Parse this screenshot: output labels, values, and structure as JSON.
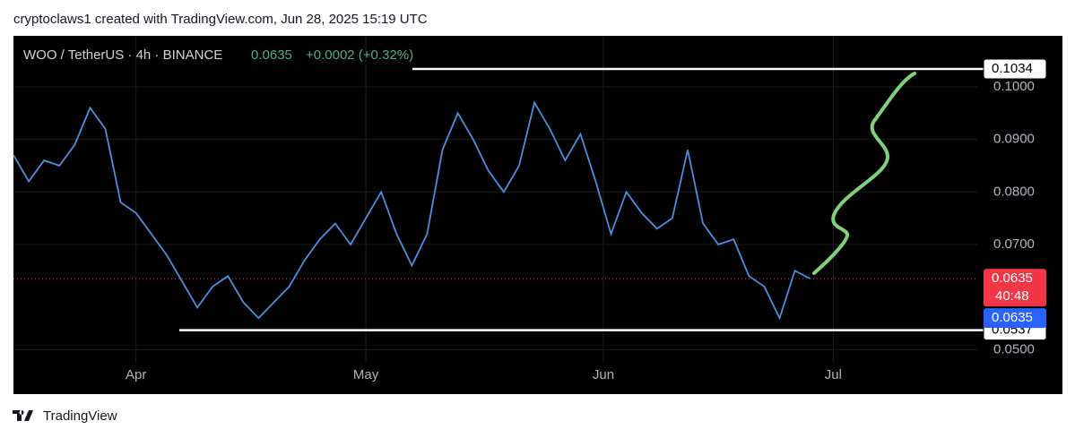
{
  "header": "cryptoclaws1 created with TradingView.com, Jun 28, 2025 15:19 UTC",
  "footer": "TradingView",
  "chart_data": {
    "type": "line",
    "symbol": "WOO / TetherUS · 4h · BINANCE",
    "last": "0.0635",
    "change": "+0.0002 (+0.32%)",
    "countdown": "40:48",
    "series": [
      {
        "name": "WOO / TetherUS",
        "color": "#4a8fe0",
        "values": [
          0.087,
          0.082,
          0.086,
          0.085,
          0.089,
          0.096,
          0.092,
          0.078,
          0.076,
          0.072,
          0.068,
          0.063,
          0.058,
          0.062,
          0.064,
          0.059,
          0.056,
          0.059,
          0.062,
          0.067,
          0.071,
          0.074,
          0.07,
          0.075,
          0.08,
          0.072,
          0.066,
          0.072,
          0.088,
          0.095,
          0.09,
          0.084,
          0.08,
          0.085,
          0.097,
          0.092,
          0.086,
          0.091,
          0.082,
          0.072,
          0.08,
          0.076,
          0.073,
          0.075,
          0.088,
          0.074,
          0.07,
          0.071,
          0.064,
          0.062,
          0.056,
          0.065,
          0.0635
        ]
      }
    ],
    "levels": [
      {
        "value": 0.1034,
        "label": "0.1034"
      },
      {
        "value": 0.0537,
        "label": "0.0537"
      }
    ],
    "price_line": {
      "value": 0.0635,
      "label": "0.0635",
      "color": "#f23645"
    },
    "blue_label": {
      "value": 0.0635,
      "label": "0.0635",
      "color": "#2962ff"
    },
    "xlim": [
      0,
      62.9
    ],
    "xticks": [
      {
        "value": 8,
        "label": "Apr"
      },
      {
        "value": 23,
        "label": "May"
      },
      {
        "value": 38.5,
        "label": "Jun"
      },
      {
        "value": 53.5,
        "label": "Jul"
      }
    ],
    "ylim": [
      0.0475,
      0.1097
    ],
    "yticks": [
      {
        "value": 0.05,
        "label": "0.0500"
      },
      {
        "value": 0.07,
        "label": "0.0700"
      },
      {
        "value": 0.08,
        "label": "0.0800"
      },
      {
        "value": 0.09,
        "label": "0.0900"
      },
      {
        "value": 0.1,
        "label": "0.1000"
      }
    ],
    "grid": true
  }
}
